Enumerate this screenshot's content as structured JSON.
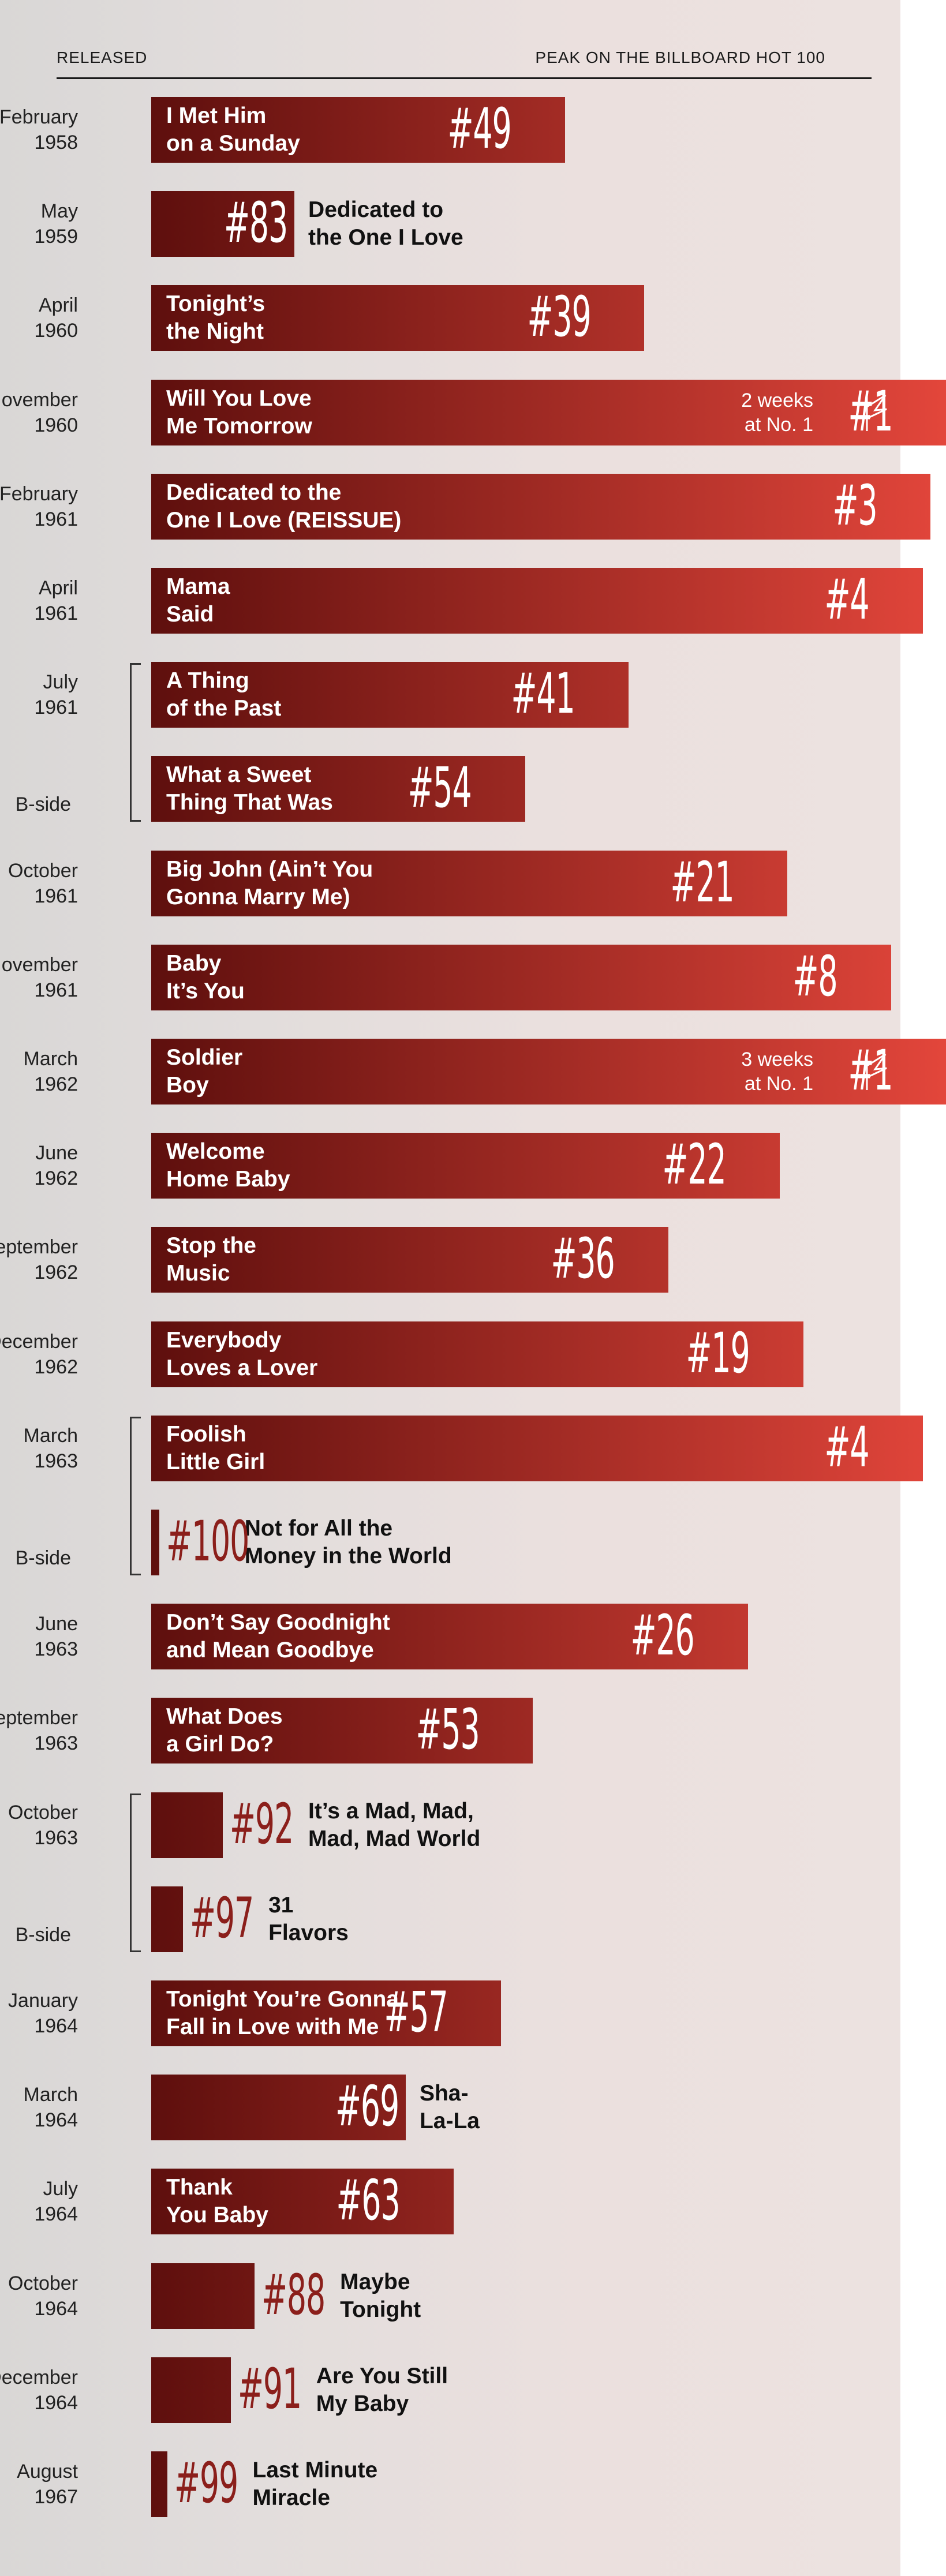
{
  "header": {
    "left": "RELEASED",
    "right": "PEAK ON THE BILLBOARD HOT 100"
  },
  "colors": {
    "bar_dark": "#5e0f0d",
    "bar_bright": "#e3463b",
    "rank_outside": "#8b1f1b"
  },
  "chart_data": {
    "type": "bar",
    "orientation": "horizontal",
    "value_meaning": "peak position on the Billboard Hot 100 (lower is better; bar length grows as rank approaches #1)",
    "xlim": [
      100,
      1
    ],
    "rows": [
      {
        "date": [
          "February",
          "1958"
        ],
        "title": [
          "I Met Him",
          "on a Sunday"
        ],
        "peak": 49,
        "rank": "#49"
      },
      {
        "date": [
          "May",
          "1959"
        ],
        "title": [
          "Dedicated to",
          "the One I Love"
        ],
        "peak": 83,
        "rank": "#83"
      },
      {
        "date": [
          "April",
          "1960"
        ],
        "title": [
          "Tonight’s",
          "the Night"
        ],
        "peak": 39,
        "rank": "#39"
      },
      {
        "date": [
          "November",
          "1960"
        ],
        "title": [
          "Will You Love",
          "Me Tomorrow"
        ],
        "peak": 1,
        "rank": "#1",
        "weeks": [
          "2 weeks",
          "at No. 1"
        ]
      },
      {
        "date": [
          "February",
          "1961"
        ],
        "title": [
          "Dedicated to the",
          "One I Love (REISSUE)"
        ],
        "peak": 3,
        "rank": "#3"
      },
      {
        "date": [
          "April",
          "1961"
        ],
        "title": [
          "Mama",
          "Said"
        ],
        "peak": 4,
        "rank": "#4"
      },
      {
        "date": [
          "July",
          "1961"
        ],
        "title": [
          "A Thing",
          "of the Past"
        ],
        "peak": 41,
        "rank": "#41",
        "bracket_start": true
      },
      {
        "bside": "B-side",
        "title": [
          "What a Sweet",
          "Thing That Was"
        ],
        "peak": 54,
        "rank": "#54"
      },
      {
        "date": [
          "October",
          "1961"
        ],
        "title": [
          "Big John (Ain’t You",
          "Gonna Marry Me)"
        ],
        "peak": 21,
        "rank": "#21"
      },
      {
        "date": [
          "November",
          "1961"
        ],
        "title": [
          "Baby",
          "It’s You"
        ],
        "peak": 8,
        "rank": "#8"
      },
      {
        "date": [
          "March",
          "1962"
        ],
        "title": [
          "Soldier",
          "Boy"
        ],
        "peak": 1,
        "rank": "#1",
        "weeks": [
          "3 weeks",
          "at No. 1"
        ]
      },
      {
        "date": [
          "June",
          "1962"
        ],
        "title": [
          "Welcome",
          "Home Baby"
        ],
        "peak": 22,
        "rank": "#22"
      },
      {
        "date": [
          "September",
          "1962"
        ],
        "title": [
          "Stop the",
          "Music"
        ],
        "peak": 36,
        "rank": "#36"
      },
      {
        "date": [
          "December",
          "1962"
        ],
        "title": [
          "Everybody",
          "Loves a Lover"
        ],
        "peak": 19,
        "rank": "#19"
      },
      {
        "date": [
          "March",
          "1963"
        ],
        "title": [
          "Foolish",
          "Little Girl"
        ],
        "peak": 4,
        "rank": "#4",
        "bracket_start": true
      },
      {
        "bside": "B-side",
        "title": [
          "Not for All the",
          "Money in the World"
        ],
        "peak": 100,
        "rank": "#100"
      },
      {
        "date": [
          "June",
          "1963"
        ],
        "title": [
          "Don’t Say Goodnight",
          "and Mean Goodbye"
        ],
        "peak": 26,
        "rank": "#26"
      },
      {
        "date": [
          "September",
          "1963"
        ],
        "title": [
          "What Does",
          "a Girl Do?"
        ],
        "peak": 53,
        "rank": "#53"
      },
      {
        "date": [
          "October",
          "1963"
        ],
        "title": [
          "It’s a Mad, Mad,",
          "Mad, Mad World"
        ],
        "peak": 92,
        "rank": "#92",
        "bracket_start": true
      },
      {
        "bside": "B-side",
        "title": [
          "31",
          "Flavors"
        ],
        "peak": 97,
        "rank": "#97"
      },
      {
        "date": [
          "January",
          "1964"
        ],
        "title": [
          "Tonight You’re Gonna",
          "Fall in Love with Me"
        ],
        "peak": 57,
        "rank": "#57"
      },
      {
        "date": [
          "March",
          "1964"
        ],
        "title": [
          "Sha-",
          "La-La"
        ],
        "peak": 69,
        "rank": "#69"
      },
      {
        "date": [
          "July",
          "1964"
        ],
        "title": [
          "Thank",
          "You Baby"
        ],
        "peak": 63,
        "rank": "#63"
      },
      {
        "date": [
          "October",
          "1964"
        ],
        "title": [
          "Maybe",
          "Tonight"
        ],
        "peak": 88,
        "rank": "#88"
      },
      {
        "date": [
          "December",
          "1964"
        ],
        "title": [
          "Are You Still",
          "My Baby"
        ],
        "peak": 91,
        "rank": "#91"
      },
      {
        "date": [
          "August",
          "1967"
        ],
        "title": [
          "Last Minute",
          "Miracle"
        ],
        "peak": 99,
        "rank": "#99"
      }
    ]
  }
}
